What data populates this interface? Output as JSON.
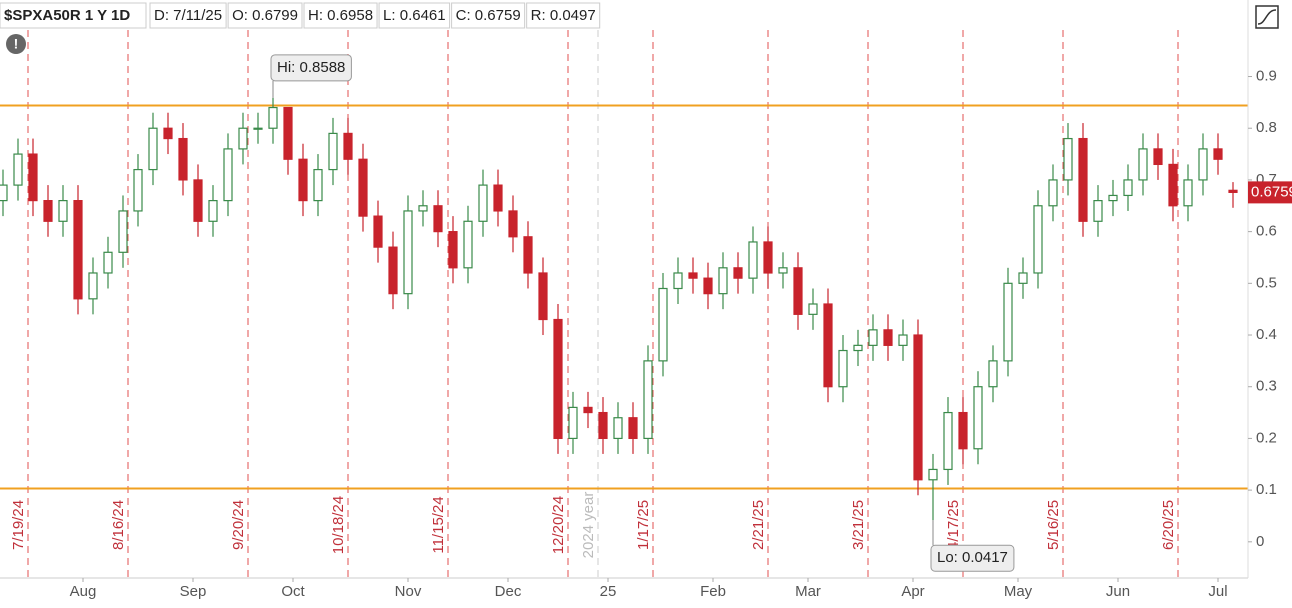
{
  "chart_data": {
    "type": "candlestick",
    "title": "$SPXA50R 1 Y 1D",
    "header": [
      {
        "label": "D: 7/11/25"
      },
      {
        "value": 0.6799,
        "label": "O: 0.6799"
      },
      {
        "value": 0.6958,
        "label": "H: 0.6958"
      },
      {
        "value": 0.6461,
        "label": "L: 0.6461"
      },
      {
        "value": 0.6759,
        "label": "C: 0.6759"
      },
      {
        "value": 0.0497,
        "label": "R: 0.0497"
      }
    ],
    "x": [
      0,
      3,
      6,
      9,
      12,
      15,
      18,
      21,
      24,
      27,
      30,
      33,
      36,
      39,
      42,
      45,
      48,
      51,
      54,
      57,
      60,
      63,
      66,
      69,
      72,
      75,
      78,
      81,
      84,
      87,
      90,
      93,
      96,
      99,
      102,
      105,
      108,
      111,
      114,
      117,
      120,
      123,
      126,
      129,
      132,
      135,
      138,
      141,
      144,
      147,
      150,
      153,
      156,
      159,
      162,
      165,
      168,
      171,
      174,
      177,
      180,
      183,
      186,
      189,
      192,
      195,
      198,
      201,
      204,
      207,
      210,
      213,
      216,
      219,
      222,
      225,
      228,
      231,
      234,
      237,
      240,
      243,
      246
    ],
    "open": [
      0.66,
      0.69,
      0.75,
      0.66,
      0.62,
      0.66,
      0.47,
      0.52,
      0.56,
      0.64,
      0.72,
      0.8,
      0.78,
      0.7,
      0.62,
      0.66,
      0.76,
      0.8,
      0.8,
      0.84,
      0.74,
      0.66,
      0.72,
      0.79,
      0.74,
      0.63,
      0.57,
      0.48,
      0.64,
      0.65,
      0.6,
      0.53,
      0.62,
      0.69,
      0.64,
      0.59,
      0.52,
      0.43,
      0.2,
      0.26,
      0.25,
      0.2,
      0.24,
      0.2,
      0.35,
      0.49,
      0.52,
      0.51,
      0.48,
      0.53,
      0.51,
      0.58,
      0.52,
      0.53,
      0.44,
      0.46,
      0.3,
      0.37,
      0.38,
      0.41,
      0.38,
      0.4,
      0.12,
      0.14,
      0.25,
      0.18,
      0.3,
      0.35,
      0.5,
      0.52,
      0.65,
      0.7,
      0.78,
      0.62,
      0.66,
      0.67,
      0.7,
      0.76,
      0.73,
      0.65,
      0.7,
      0.76,
      0.6799
    ],
    "high": [
      0.72,
      0.78,
      0.78,
      0.69,
      0.69,
      0.69,
      0.55,
      0.59,
      0.67,
      0.75,
      0.83,
      0.83,
      0.81,
      0.73,
      0.69,
      0.79,
      0.83,
      0.83,
      0.8588,
      0.84,
      0.77,
      0.75,
      0.82,
      0.82,
      0.77,
      0.66,
      0.6,
      0.67,
      0.68,
      0.68,
      0.63,
      0.65,
      0.72,
      0.72,
      0.67,
      0.62,
      0.55,
      0.46,
      0.29,
      0.29,
      0.28,
      0.27,
      0.27,
      0.38,
      0.52,
      0.55,
      0.55,
      0.54,
      0.56,
      0.56,
      0.61,
      0.61,
      0.56,
      0.56,
      0.49,
      0.49,
      0.4,
      0.41,
      0.44,
      0.44,
      0.43,
      0.43,
      0.17,
      0.28,
      0.28,
      0.33,
      0.38,
      0.53,
      0.55,
      0.68,
      0.73,
      0.81,
      0.81,
      0.69,
      0.7,
      0.73,
      0.79,
      0.79,
      0.76,
      0.73,
      0.79,
      0.79,
      0.6958
    ],
    "low": [
      0.63,
      0.66,
      0.63,
      0.59,
      0.59,
      0.44,
      0.44,
      0.49,
      0.53,
      0.61,
      0.69,
      0.75,
      0.67,
      0.59,
      0.59,
      0.63,
      0.73,
      0.77,
      0.77,
      0.71,
      0.63,
      0.63,
      0.69,
      0.71,
      0.6,
      0.54,
      0.45,
      0.45,
      0.61,
      0.57,
      0.5,
      0.5,
      0.59,
      0.61,
      0.56,
      0.49,
      0.4,
      0.17,
      0.17,
      0.22,
      0.17,
      0.17,
      0.17,
      0.17,
      0.32,
      0.46,
      0.48,
      0.45,
      0.45,
      0.48,
      0.48,
      0.49,
      0.49,
      0.41,
      0.41,
      0.27,
      0.27,
      0.34,
      0.35,
      0.35,
      0.35,
      0.09,
      0.0417,
      0.11,
      0.15,
      0.15,
      0.27,
      0.32,
      0.47,
      0.49,
      0.62,
      0.67,
      0.59,
      0.59,
      0.63,
      0.64,
      0.67,
      0.7,
      0.62,
      0.62,
      0.67,
      0.71,
      0.6461
    ],
    "close": [
      0.69,
      0.75,
      0.66,
      0.62,
      0.66,
      0.47,
      0.52,
      0.56,
      0.64,
      0.72,
      0.8,
      0.78,
      0.7,
      0.62,
      0.66,
      0.76,
      0.8,
      0.8,
      0.84,
      0.74,
      0.66,
      0.72,
      0.79,
      0.74,
      0.63,
      0.57,
      0.48,
      0.64,
      0.65,
      0.6,
      0.53,
      0.62,
      0.69,
      0.64,
      0.59,
      0.52,
      0.43,
      0.2,
      0.26,
      0.25,
      0.2,
      0.24,
      0.2,
      0.35,
      0.49,
      0.52,
      0.51,
      0.48,
      0.53,
      0.51,
      0.58,
      0.52,
      0.53,
      0.44,
      0.46,
      0.3,
      0.37,
      0.38,
      0.41,
      0.38,
      0.4,
      0.12,
      0.14,
      0.25,
      0.18,
      0.3,
      0.35,
      0.5,
      0.52,
      0.65,
      0.7,
      0.78,
      0.62,
      0.66,
      0.67,
      0.7,
      0.76,
      0.73,
      0.65,
      0.7,
      0.76,
      0.74,
      0.6759
    ],
    "up_color": "#3a8a4a",
    "down_color": "#c8232c",
    "xlim": [
      -0.6,
      248.4
    ],
    "xticks": [
      {
        "value": 16,
        "label": "Aug"
      },
      {
        "value": 38,
        "label": "Sep"
      },
      {
        "value": 58,
        "label": "Oct"
      },
      {
        "value": 81,
        "label": "Nov"
      },
      {
        "value": 101,
        "label": "Dec"
      },
      {
        "value": 121,
        "label": "25"
      },
      {
        "value": 142,
        "label": "Feb"
      },
      {
        "value": 161,
        "label": "Mar"
      },
      {
        "value": 182,
        "label": "Apr"
      },
      {
        "value": 203,
        "label": "May"
      },
      {
        "value": 223,
        "label": "Jun"
      },
      {
        "value": 243,
        "label": "Jul"
      }
    ],
    "ylim": [
      -0.07,
      0.99
    ],
    "yticks": [
      0,
      0.1,
      0.2,
      0.3,
      0.4,
      0.5,
      0.6,
      0.7,
      0.8,
      0.9
    ],
    "markers": [
      {
        "value": 5,
        "label": "7/19/24"
      },
      {
        "value": 25,
        "label": "8/16/24"
      },
      {
        "value": 49,
        "label": "9/20/24"
      },
      {
        "value": 69,
        "label": "10/18/24"
      },
      {
        "value": 89,
        "label": "11/15/24"
      },
      {
        "value": 113,
        "label": "12/20/24"
      },
      {
        "value": 130,
        "label": "1/17/25"
      },
      {
        "value": 153,
        "label": "2/21/25"
      },
      {
        "value": 173,
        "label": "3/21/25"
      },
      {
        "value": 192,
        "label": "4/17/25"
      },
      {
        "value": 212,
        "label": "5/16/25"
      },
      {
        "value": 235,
        "label": "6/20/25"
      }
    ],
    "year_marker": {
      "value": 119,
      "label": "2024 year"
    },
    "hlines": [
      0.844,
      0.103
    ],
    "hline_color": "#f0a020",
    "hi": {
      "index": 18,
      "value": 0.8588,
      "label": "Hi: 0.8588"
    },
    "lo": {
      "index": 62,
      "value": 0.0417,
      "label": "Lo: 0.0417"
    },
    "last": {
      "value": 0.6759,
      "label": "0.6759"
    }
  }
}
